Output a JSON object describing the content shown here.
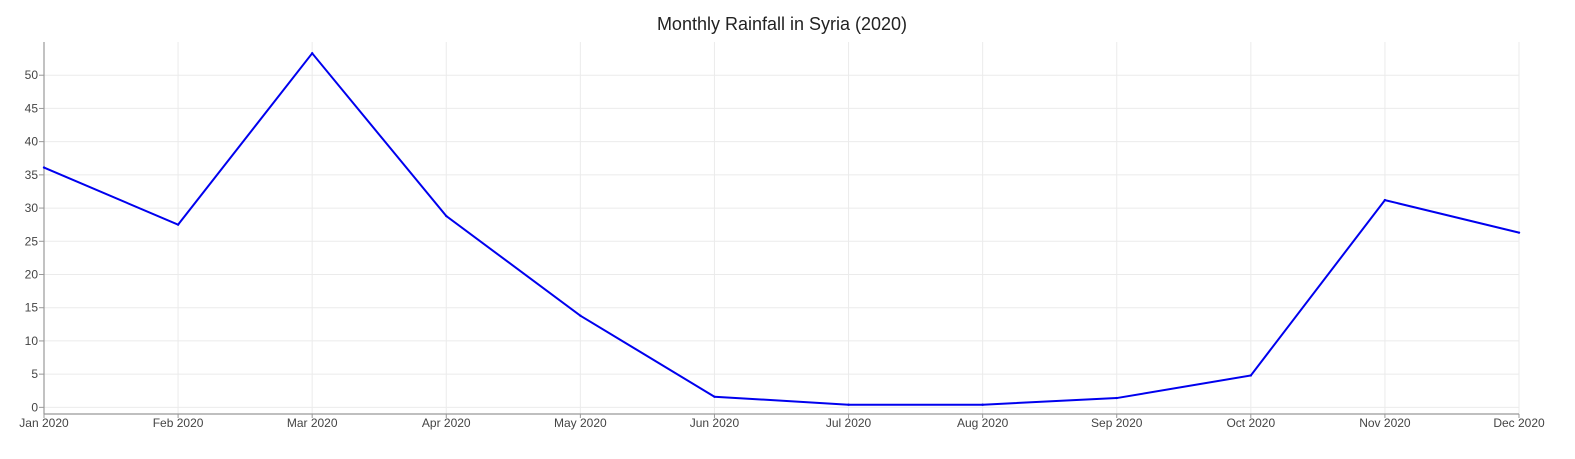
{
  "chart_data": {
    "type": "line",
    "title": "Monthly Rainfall in Syria (2020)",
    "xlabel": "",
    "ylabel": "",
    "categories": [
      "Jan 2020",
      "Feb 2020",
      "Mar 2020",
      "Apr 2020",
      "May 2020",
      "Jun 2020",
      "Jul 2020",
      "Aug 2020",
      "Sep 2020",
      "Oct 2020",
      "Nov 2020",
      "Dec 2020"
    ],
    "series": [
      {
        "values": [
          36.1,
          27.5,
          53.3,
          28.8,
          13.8,
          1.6,
          0.4,
          0.4,
          1.4,
          4.8,
          31.2,
          26.3
        ],
        "color": "#0000ee"
      }
    ],
    "ylim": [
      -1,
      55
    ],
    "yticks": [
      0,
      5,
      10,
      15,
      20,
      25,
      30,
      35,
      40,
      45,
      50
    ],
    "grid": true,
    "legend": "none"
  }
}
